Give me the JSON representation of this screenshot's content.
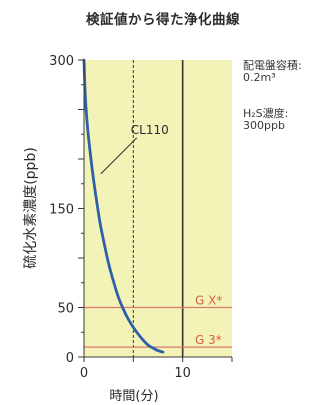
{
  "chart_data": {
    "type": "line",
    "title": "検証値から得た浄化曲線",
    "xlabel": "時間(分)",
    "ylabel": "硫化水素濃度(ppb)",
    "xlim": [
      0,
      15
    ],
    "ylim": [
      0,
      300
    ],
    "x_ticks": [
      0,
      10
    ],
    "y_ticks": [
      0,
      50,
      150,
      300
    ],
    "grid": "vertical lines at 5 and 10 minutes",
    "series": [
      {
        "name": "CL110",
        "x": [
          0,
          0.15,
          0.4,
          0.8,
          1.2,
          1.6,
          2.0,
          2.5,
          3.0,
          3.5,
          4.0,
          4.5,
          5.0,
          5.5,
          6.0,
          6.5,
          7.0,
          7.5,
          8.0
        ],
        "y": [
          300,
          260,
          228,
          192,
          163,
          137,
          117,
          94,
          76,
          60,
          48,
          38,
          30,
          23,
          17,
          12,
          9,
          6.5,
          5
        ]
      }
    ],
    "reference_lines": [
      {
        "label": "G X*",
        "value": 50
      },
      {
        "label": "G 3*",
        "value": 10
      }
    ],
    "notes": [
      {
        "label": "配電盤容積:",
        "value": "0.2m³"
      },
      {
        "label": "H₂S濃度:",
        "value": "300ppb"
      }
    ],
    "colors": {
      "background": "#f4f3b7",
      "curve": "#2f5fa8",
      "reference": "#dd7a6e",
      "reference_label": "#d3604c",
      "grid": "#333333"
    }
  }
}
